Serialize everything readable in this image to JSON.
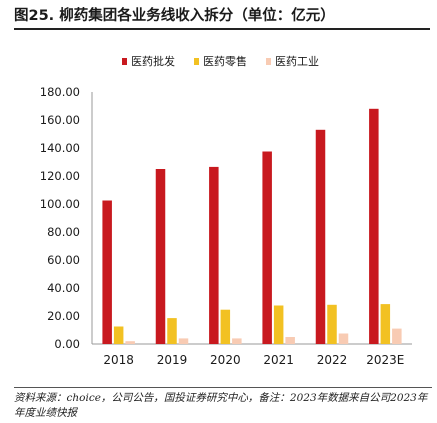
{
  "figure_title": "图25. 柳药集团各业务线收入拆分（单位：亿元）",
  "source_note": "资料来源：choice，公司公告，国投证券研究中心，备注：2023年数据来自公司2023年年度业绩快报",
  "colors": {
    "wholesale": "#c8191f",
    "retail": "#f2c122",
    "industry": "#f8cbb3",
    "axis": "#999999",
    "text": "#1a1a1a"
  },
  "chart_data": {
    "type": "bar",
    "categories": [
      "2018",
      "2019",
      "2020",
      "2021",
      "2022",
      "2023E"
    ],
    "series": [
      {
        "name": "医药批发",
        "values": [
          102.5,
          125.0,
          126.5,
          137.5,
          153.0,
          168.0
        ]
      },
      {
        "name": "医药零售",
        "values": [
          12.5,
          18.5,
          24.5,
          27.5,
          28.0,
          28.5
        ]
      },
      {
        "name": "医药工业",
        "values": [
          2.0,
          4.0,
          4.0,
          5.0,
          7.5,
          11.0
        ]
      }
    ],
    "ylim": [
      0,
      180
    ],
    "yticks": [
      "0.00",
      "20.00",
      "40.00",
      "60.00",
      "80.00",
      "100.00",
      "120.00",
      "140.00",
      "160.00",
      "180.00"
    ],
    "legend_position": "top-center",
    "grid": false,
    "xlabel": "",
    "ylabel": ""
  }
}
